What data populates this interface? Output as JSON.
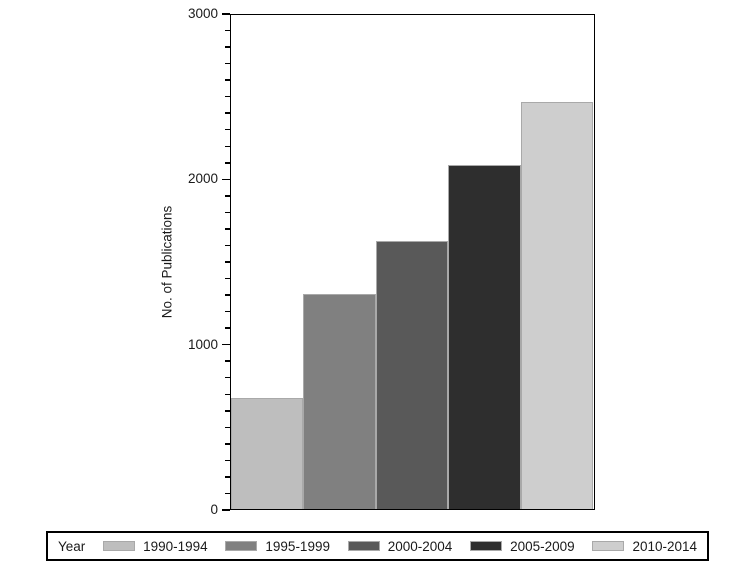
{
  "chart_data": {
    "type": "bar",
    "title": "",
    "ylabel": "No. of Publications",
    "xlabel": "",
    "ylim": [
      0,
      3000
    ],
    "ytick_major": [
      0,
      1000,
      2000,
      3000
    ],
    "ytick_minor_step": 100,
    "grid": false,
    "legend_position": "bottom",
    "legend_title": "Year",
    "categories": [
      "1990-1994",
      "1995-1999",
      "2000-2004",
      "2005-2009",
      "2010-2014"
    ],
    "values": [
      670,
      1300,
      1620,
      2080,
      2460
    ],
    "colors": [
      "#bebebe",
      "#808080",
      "#595959",
      "#2e2e2e",
      "#cecece"
    ],
    "bar_outline": "#a9a9a9",
    "frame_color": "#000000"
  }
}
